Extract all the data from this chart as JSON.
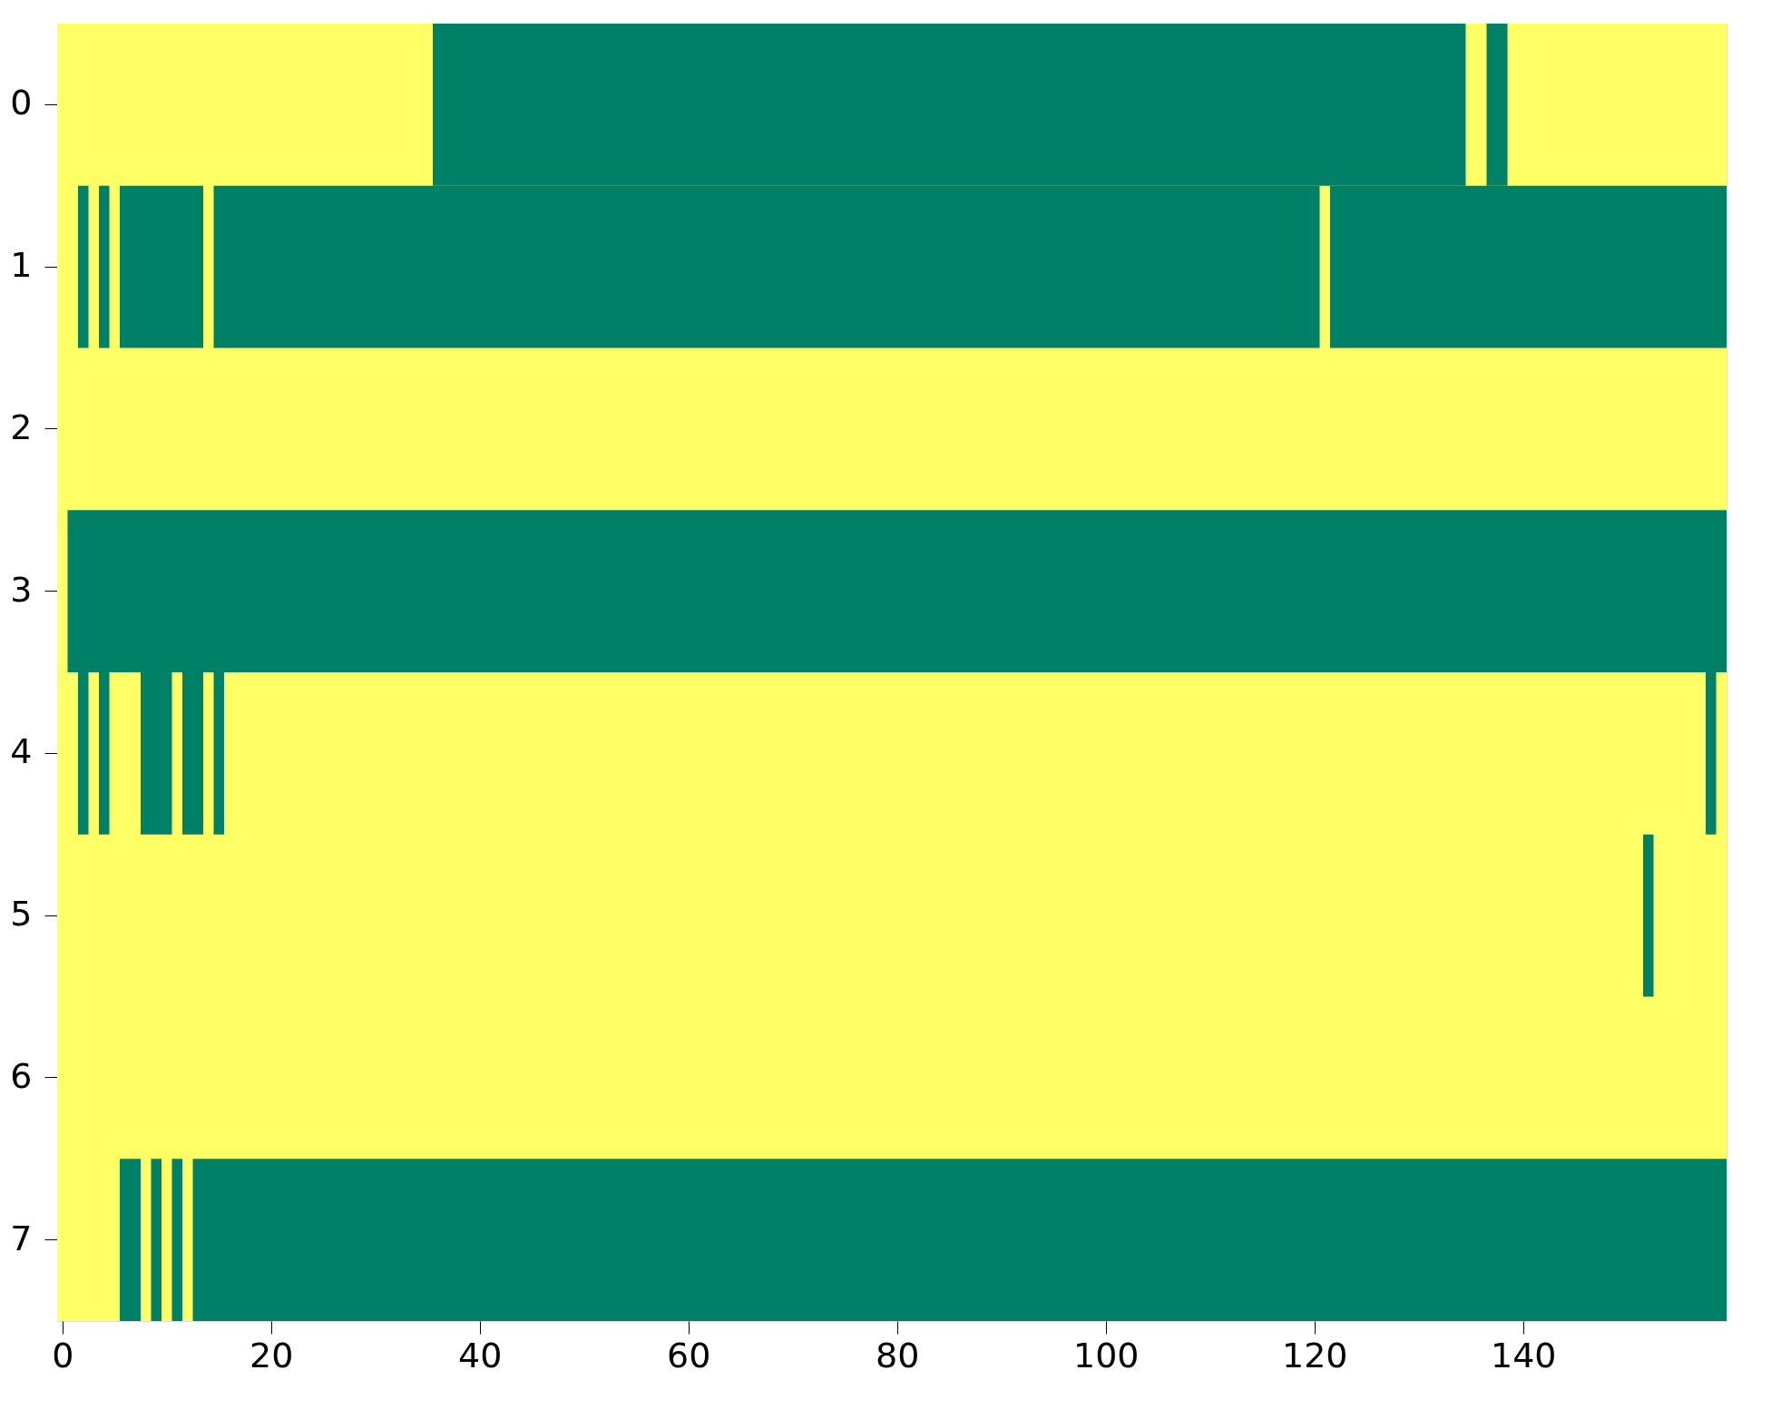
{
  "chart_data": {
    "type": "bar",
    "orientation": "horizontal",
    "categories": [
      "0",
      "1",
      "2",
      "3",
      "4",
      "5",
      "6",
      "7"
    ],
    "xlim": [
      -0.5,
      159.5
    ],
    "xticks": [
      0,
      20,
      40,
      60,
      80,
      100,
      120,
      140
    ],
    "bands": [
      {
        "axis": "x",
        "from": -0.5,
        "to": 159.5,
        "color": "#ffff66"
      }
    ],
    "series": [
      {
        "color": "#008066",
        "base": [
          35.5,
          1.5,
          null,
          0.5,
          1.5,
          151.5,
          null,
          5.5
        ],
        "values": [
          99,
          1,
          null,
          159,
          1,
          1,
          null,
          2
        ]
      },
      {
        "color": "#008066",
        "base": [
          136.5,
          3.5,
          null,
          null,
          3.5,
          null,
          null,
          8.5
        ],
        "values": [
          2,
          1,
          null,
          null,
          1,
          null,
          null,
          1
        ]
      },
      {
        "color": "#008066",
        "base": [
          null,
          5.5,
          null,
          null,
          7.5,
          null,
          null,
          10.5
        ],
        "values": [
          null,
          8,
          null,
          null,
          3,
          null,
          null,
          1
        ]
      },
      {
        "color": "#008066",
        "base": [
          null,
          14.5,
          null,
          null,
          11.5,
          null,
          null,
          12.5
        ],
        "values": [
          null,
          106,
          null,
          null,
          2,
          null,
          null,
          147
        ]
      },
      {
        "color": "#008066",
        "base": [
          null,
          121.5,
          null,
          null,
          14.5,
          null,
          null,
          null
        ],
        "values": [
          null,
          38,
          null,
          null,
          1,
          null,
          null,
          null
        ]
      },
      {
        "color": "#008066",
        "base": [
          null,
          null,
          null,
          null,
          157.5,
          null,
          null,
          null
        ],
        "values": [
          null,
          null,
          null,
          null,
          1,
          null,
          null,
          null
        ]
      }
    ]
  }
}
